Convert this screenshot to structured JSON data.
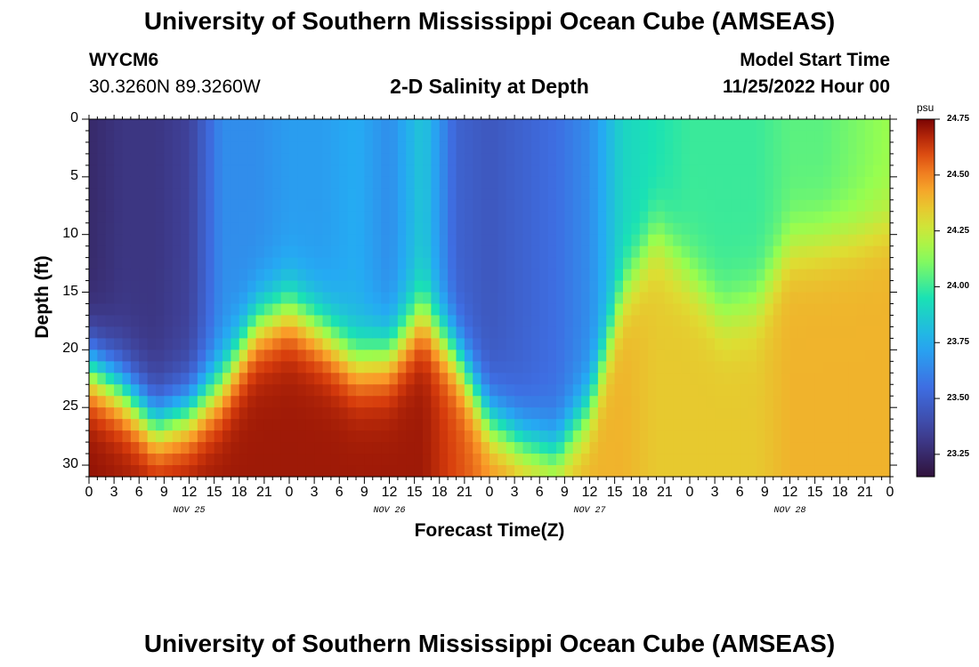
{
  "header": {
    "title": "University of Southern Mississippi Ocean Cube (AMSEAS)",
    "station_id": "WYCM6",
    "station_coords": "30.3260N  89.3260W",
    "plot_title": "2-D Salinity at Depth",
    "model_start_label": "Model Start Time",
    "model_start_value": "11/25/2022 Hour 00"
  },
  "footer": {
    "title": "University of Southern Mississippi Ocean Cube (AMSEAS)"
  },
  "chart_data": {
    "type": "heatmap",
    "title": "2-D Salinity at Depth",
    "xlabel": "Forecast Time(Z)",
    "ylabel": "Depth (ft)",
    "xlim": [
      0,
      96
    ],
    "ylim": [
      31,
      0
    ],
    "x_ticks": [
      "0",
      "3",
      "6",
      "9",
      "12",
      "15",
      "18",
      "21",
      "0",
      "3",
      "6",
      "9",
      "12",
      "15",
      "18",
      "21",
      "0",
      "3",
      "6",
      "9",
      "12",
      "15",
      "18",
      "21",
      "0",
      "3",
      "6",
      "9",
      "12",
      "15",
      "18",
      "21",
      "0"
    ],
    "day_labels": [
      {
        "label": "NOV 25",
        "hour": 12
      },
      {
        "label": "NOV 26",
        "hour": 36
      },
      {
        "label": "NOV 27",
        "hour": 60
      },
      {
        "label": "NOV 28",
        "hour": 84
      }
    ],
    "y_ticks": [
      0,
      5,
      10,
      15,
      20,
      25,
      30
    ],
    "colorbar": {
      "unit": "psu",
      "min": 23.15,
      "max": 24.75,
      "ticks": [
        "24.75",
        "24.50",
        "24.25",
        "24.00",
        "23.75",
        "23.50",
        "23.25"
      ]
    },
    "description_profiles": {
      "hours": [
        0,
        4,
        8,
        12,
        16,
        20,
        24,
        28,
        32,
        36,
        40,
        44,
        48,
        52,
        56,
        60,
        64,
        68,
        72,
        76,
        80,
        84,
        88,
        92,
        96
      ],
      "surface_psu": [
        23.25,
        23.3,
        23.3,
        23.35,
        23.65,
        23.65,
        23.7,
        23.7,
        23.75,
        23.65,
        23.85,
        23.5,
        23.45,
        23.5,
        23.55,
        23.65,
        23.9,
        23.95,
        24.0,
        24.0,
        24.0,
        24.05,
        24.05,
        24.1,
        24.15
      ],
      "halocline_depth_ft": [
        21.5,
        23.5,
        26.5,
        25.5,
        23.0,
        18.0,
        16.5,
        18.5,
        21.0,
        20.5,
        17.0,
        20.5,
        26.0,
        28.0,
        29.0,
        25.0,
        15.0,
        10.0,
        13.5,
        17.0,
        16.0,
        11.0,
        10.5,
        10.0,
        9.0
      ],
      "bottom_psu": [
        24.72,
        24.7,
        24.7,
        24.7,
        24.7,
        24.7,
        24.7,
        24.7,
        24.7,
        24.7,
        24.7,
        24.6,
        24.5,
        24.45,
        24.4,
        24.4,
        24.4,
        24.35,
        24.35,
        24.35,
        24.35,
        24.4,
        24.4,
        24.4,
        24.4
      ]
    }
  }
}
